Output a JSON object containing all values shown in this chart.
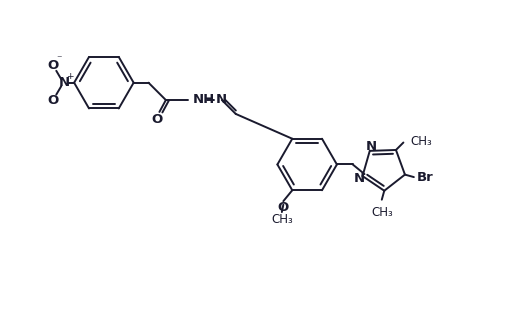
{
  "bg_color": "#ffffff",
  "line_color": "#1a1a2e",
  "lw": 1.4,
  "fs": 8.5,
  "figsize": [
    5.31,
    3.27
  ],
  "dpi": 100,
  "xlim": [
    0,
    10.62
  ],
  "ylim": [
    0,
    6.54
  ]
}
